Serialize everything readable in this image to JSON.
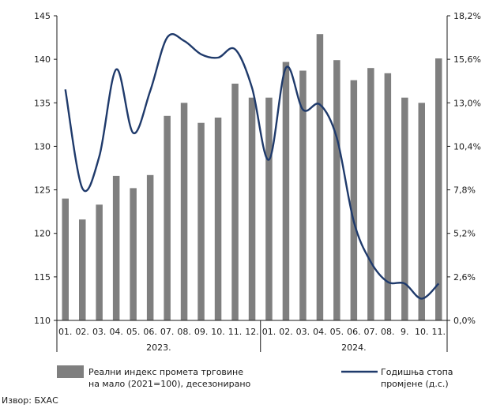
{
  "chart_data": {
    "type": "bar",
    "categories": [
      "01.",
      "02.",
      "03.",
      "04.",
      "05.",
      "06.",
      "07.",
      "08.",
      "09.",
      "10.",
      "11.",
      "12.",
      "01.",
      "02.",
      "03.",
      "04.",
      "05.",
      "06.",
      "07.",
      "08.",
      "9.",
      "10.",
      "11."
    ],
    "groups": [
      {
        "label": "2023.",
        "count": 12
      },
      {
        "label": "2024.",
        "count": 11
      }
    ],
    "series": [
      {
        "name": "Реални индекс промета трговине на мало (2021=100), десезонирано",
        "type": "bar",
        "axis": "left",
        "color": "#7f7f7f",
        "values": [
          124.0,
          121.6,
          123.3,
          126.6,
          125.2,
          126.7,
          133.5,
          135.0,
          132.7,
          133.3,
          137.2,
          135.6,
          135.6,
          139.7,
          138.7,
          142.9,
          139.9,
          137.6,
          139.0,
          138.4,
          135.6,
          135.0,
          140.1
        ]
      },
      {
        "name": "Годишња стопа промјене (д.с.)",
        "type": "line",
        "axis": "right",
        "color": "#1f3a6b",
        "values": [
          13.8,
          7.9,
          9.8,
          15.0,
          11.2,
          13.7,
          16.9,
          16.7,
          15.9,
          15.7,
          16.2,
          13.9,
          9.6,
          15.1,
          12.6,
          12.9,
          10.9,
          5.9,
          3.5,
          2.3,
          2.2,
          1.3,
          2.2
        ]
      }
    ],
    "y_left": {
      "min": 110,
      "max": 145,
      "ticks": [
        110,
        115,
        120,
        125,
        130,
        135,
        140,
        145
      ]
    },
    "y_right": {
      "min": 0,
      "max": 18.2,
      "tick_values": [
        0,
        2.6,
        5.2,
        7.8,
        10.4,
        13.0,
        15.6,
        18.2
      ],
      "tick_labels": [
        "0,0%",
        "2,6%",
        "5,2%",
        "7,8%",
        "10,4%",
        "13,0%",
        "15,6%",
        "18,2%"
      ]
    },
    "legend": {
      "bar_label_lines": [
        "Реални индекс промета трговине",
        "на мало (2021=100), десезонирано"
      ],
      "line_label_lines": [
        "Годишња стопа",
        "промјене (д.с.)"
      ],
      "placement": "bottom"
    },
    "grid": false
  },
  "source_note": "Извор: БХАС"
}
